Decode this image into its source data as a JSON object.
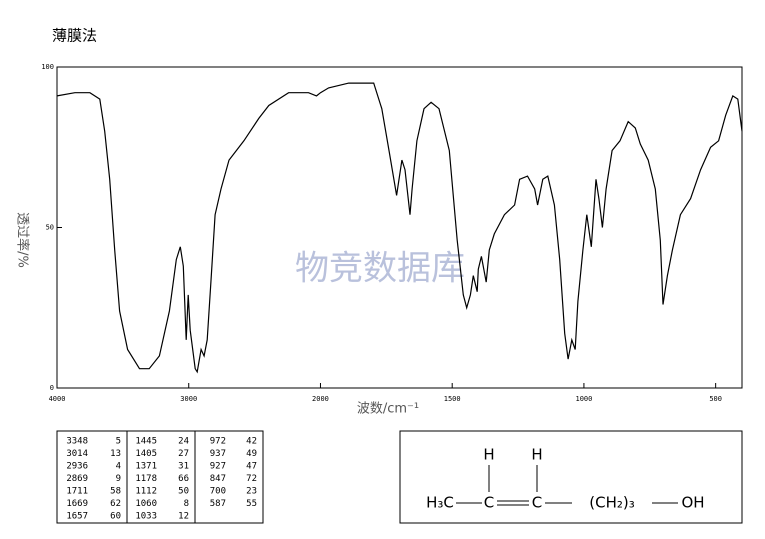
{
  "chart_data": {
    "type": "line",
    "title": "薄膜法",
    "watermark": "物竞数据库",
    "xlabel": "波数/cm⁻¹",
    "ylabel": "透过率/%",
    "xlim": [
      4000,
      400
    ],
    "ylim": [
      0,
      100
    ],
    "x_scale": {
      "break": 2000,
      "expand": 2
    },
    "xticks": [
      4000,
      3000,
      2000,
      1500,
      1000,
      500
    ],
    "yticks": [
      0,
      50,
      100
    ],
    "color": "#000000",
    "x": [
      4000,
      3864,
      3750,
      3675,
      3638,
      3600,
      3562,
      3525,
      3464,
      3374,
      3300,
      3223,
      3147,
      3094,
      3064,
      3041,
      3019,
      3004,
      2989,
      2951,
      2936,
      2906,
      2883,
      2860,
      2830,
      2800,
      2755,
      2694,
      2581,
      2468,
      2392,
      2242,
      2091,
      2030,
      2000,
      1969,
      1893,
      1798,
      1767,
      1740,
      1711,
      1691,
      1679,
      1660,
      1652,
      1634,
      1607,
      1580,
      1550,
      1511,
      1481,
      1458,
      1445,
      1431,
      1420,
      1405,
      1401,
      1389,
      1371,
      1359,
      1340,
      1302,
      1263,
      1244,
      1214,
      1187,
      1176,
      1156,
      1137,
      1112,
      1092,
      1073,
      1060,
      1046,
      1033,
      1023,
      1004,
      989,
      972,
      954,
      943,
      930,
      916,
      893,
      863,
      832,
      805,
      786,
      756,
      729,
      710,
      700,
      683,
      664,
      634,
      595,
      557,
      519,
      489,
      462,
      435,
      416,
      400
    ],
    "values": [
      91,
      92,
      92,
      90,
      80,
      65,
      43,
      24,
      12,
      6,
      6,
      10,
      24,
      40,
      44,
      38,
      15,
      29,
      18,
      6,
      5,
      12,
      10,
      15,
      34,
      54,
      62,
      71,
      77,
      84,
      88,
      92,
      92,
      91,
      92,
      93.5,
      95,
      95,
      87,
      74,
      60,
      71,
      68,
      54,
      62,
      77,
      87,
      89,
      87,
      74,
      46,
      29,
      25,
      29,
      35,
      30,
      37,
      41,
      33,
      43,
      48,
      54,
      57,
      65,
      66,
      62,
      57,
      65,
      66,
      57,
      40,
      17,
      9,
      15,
      12,
      27,
      43,
      54,
      44,
      65,
      59,
      50,
      62,
      74,
      77,
      83,
      81,
      76,
      71,
      62,
      46,
      26,
      35,
      43,
      54,
      59,
      68,
      75,
      77,
      85,
      91,
      90,
      80
    ]
  },
  "peak_table": [
    [
      3348,
      5,
      1445,
      24,
      972,
      42
    ],
    [
      3014,
      13,
      1405,
      27,
      937,
      49
    ],
    [
      2936,
      4,
      1371,
      31,
      927,
      47
    ],
    [
      2869,
      9,
      1178,
      66,
      847,
      72
    ],
    [
      1711,
      58,
      1112,
      50,
      700,
      23
    ],
    [
      1669,
      62,
      1060,
      8,
      587,
      55
    ],
    [
      1657,
      60,
      1033,
      12
    ]
  ],
  "structure": {
    "h": [
      "H",
      "H"
    ],
    "groups": [
      "H₃C",
      "C",
      "C",
      "(CH₂)₃",
      "OH"
    ]
  }
}
